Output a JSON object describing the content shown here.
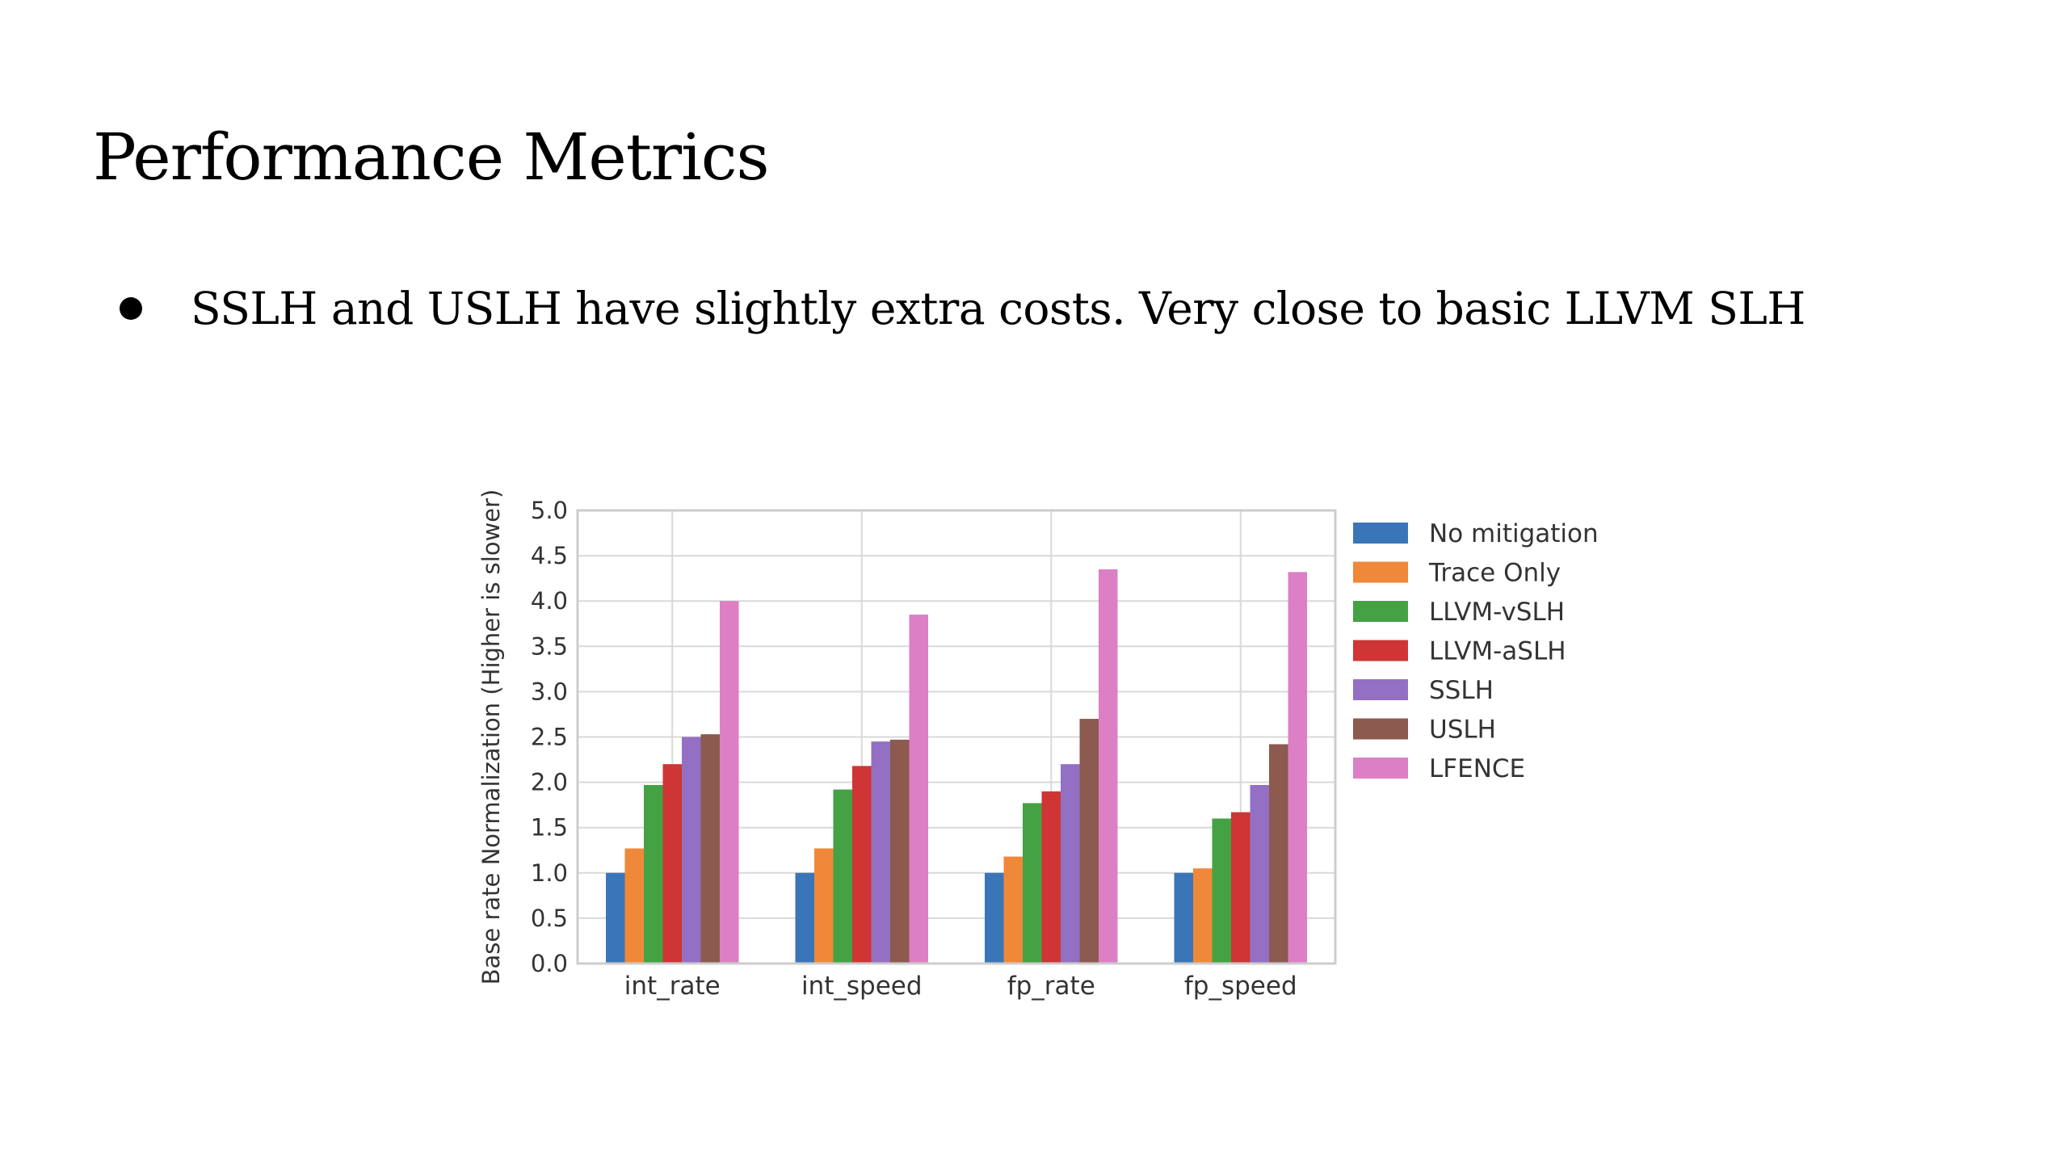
{
  "slide": {
    "title": "Performance Metrics",
    "bullet": "SSLH and USLH have slightly extra costs. Very close to basic LLVM SLH"
  },
  "chart_data": {
    "type": "bar",
    "title": "",
    "xlabel": "",
    "ylabel": "Base rate Normalization (Higher is slower)",
    "ylim": [
      0,
      5.0
    ],
    "yticks": [
      "0.0",
      "0.5",
      "1.0",
      "1.5",
      "2.0",
      "2.5",
      "3.0",
      "3.5",
      "4.0",
      "4.5",
      "5.0"
    ],
    "grid": true,
    "legend_position": "right",
    "categories": [
      "int_rate",
      "int_speed",
      "fp_rate",
      "fp_speed"
    ],
    "series": [
      {
        "name": "No mitigation",
        "color": "#3a76b7",
        "values": [
          1.0,
          1.0,
          1.0,
          1.0
        ]
      },
      {
        "name": "Trace Only",
        "color": "#f0883a",
        "values": [
          1.27,
          1.27,
          1.18,
          1.05
        ]
      },
      {
        "name": "LLVM-vSLH",
        "color": "#44a244",
        "values": [
          1.97,
          1.92,
          1.77,
          1.6
        ]
      },
      {
        "name": "LLVM-aSLH",
        "color": "#cf3535",
        "values": [
          2.2,
          2.18,
          1.9,
          1.67
        ]
      },
      {
        "name": "SSLH",
        "color": "#9370c4",
        "values": [
          2.5,
          2.45,
          2.2,
          1.97
        ]
      },
      {
        "name": "USLH",
        "color": "#8c5a4f",
        "values": [
          2.53,
          2.47,
          2.7,
          2.42
        ]
      },
      {
        "name": "LFENCE",
        "color": "#dd7fc5",
        "values": [
          4.0,
          3.85,
          4.35,
          4.32
        ]
      }
    ]
  }
}
